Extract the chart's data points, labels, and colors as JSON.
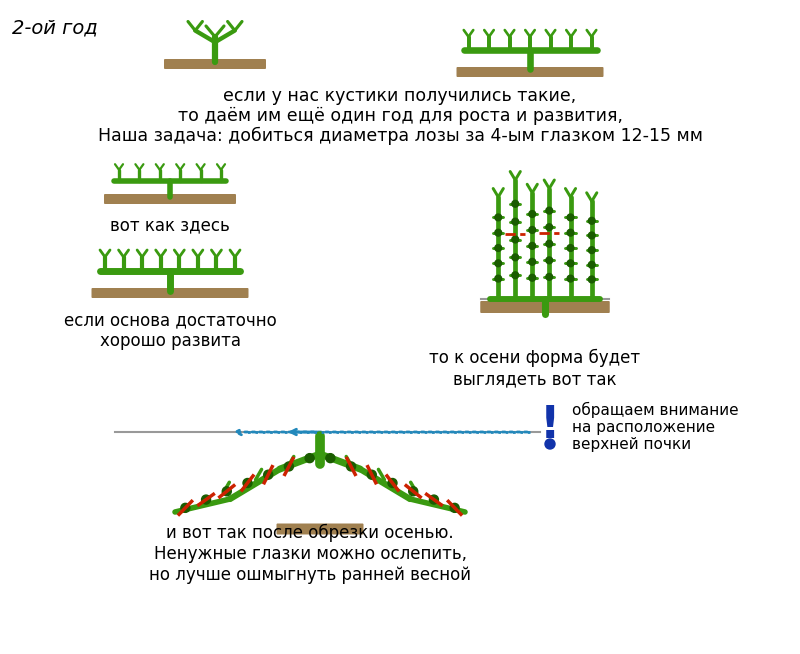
{
  "bg_color": "#ffffff",
  "title_label": "2-ой год",
  "text1": "если у нас кустики получились такие,",
  "text2": "то даём им ещё один год для роста и развития,",
  "text3": "Наша задача: добиться диаметра лозы за 4-ым глазком 12-15 мм",
  "text4": "вот как здесь",
  "text5": "если основа достаточно\nхорошо развита",
  "text6": "то к осени форма будет\nвыглядеть вот так",
  "text7": "обращаем внимание\nна расположение\nверхней почки",
  "text8": "и вот так после обрезки осенью.\nНенужные глазки можно ослепить,\nно лучше ошмыгнуть ранней весной",
  "vine_green": "#3a9a10",
  "vine_dark": "#1a6000",
  "vine_mid": "#55bb20",
  "soil_color": "#a08050",
  "red_mark": "#cc2200",
  "arrow_blue": "#2288bb",
  "dot_color": "#1a5c00",
  "exclaim_blue": "#1133aa",
  "gray_wire": "#999999"
}
